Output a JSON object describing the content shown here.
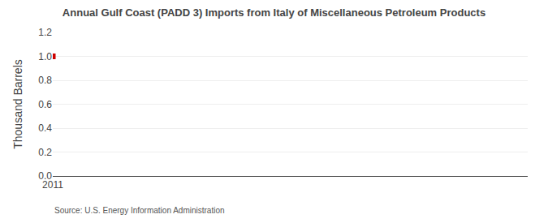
{
  "chart_data": {
    "type": "scatter",
    "title": "Annual Gulf Coast (PADD 3) Imports from Italy of Miscellaneous Petroleum Products",
    "ylabel": "Thousand Barrels",
    "annotations": [
      "Source: U.S. Energy Information Administration"
    ],
    "x": [
      2011
    ],
    "values": [
      1.0
    ],
    "color": "#cc0000",
    "marker": "square",
    "xlim": [
      2011.0,
      2021.0
    ],
    "xticks": [
      2011
    ],
    "ylim": [
      0.0,
      1.2
    ],
    "yticks": [
      {
        "value": 0.0,
        "label": "0.0"
      },
      0.2,
      0.4,
      0.6,
      0.8,
      {
        "value": 1.0,
        "label": "1.0"
      },
      1.2
    ],
    "grid": true
  }
}
